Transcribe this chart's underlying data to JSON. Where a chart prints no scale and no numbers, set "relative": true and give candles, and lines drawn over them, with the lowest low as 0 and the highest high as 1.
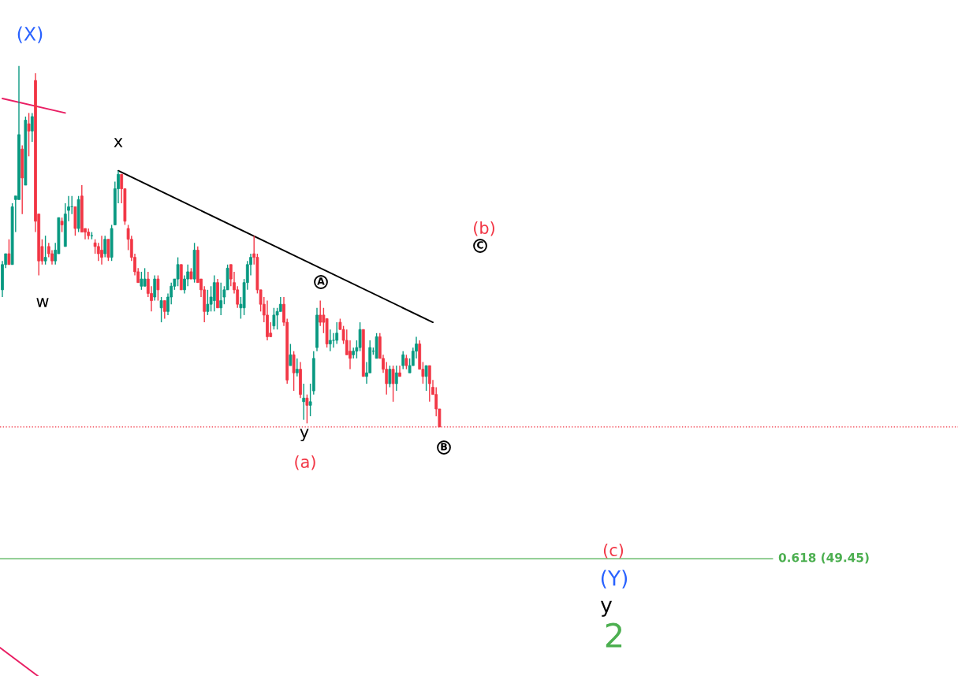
{
  "chart_data": {
    "type": "candlestick",
    "relative": true,
    "categories": [
      null,
      null,
      null,
      null,
      null,
      null,
      null,
      null,
      null,
      null,
      null,
      null,
      null,
      null,
      null,
      null,
      null,
      null,
      null,
      null,
      null,
      null,
      null,
      null,
      null,
      null,
      null,
      null,
      null,
      null,
      null,
      null,
      null,
      null,
      null,
      null,
      null,
      null,
      null,
      null,
      null,
      null,
      null,
      null,
      null,
      null,
      null,
      null,
      null,
      null,
      null,
      null,
      null,
      null,
      null,
      null,
      null,
      null,
      null,
      null,
      null,
      null,
      null,
      null,
      null,
      null,
      null,
      null,
      null,
      null,
      null,
      null,
      null,
      null,
      null,
      null,
      null,
      null,
      null,
      null,
      null,
      null,
      null,
      null,
      null,
      null,
      null,
      null,
      null,
      null,
      null,
      null,
      null,
      null,
      null,
      null,
      null,
      null,
      null,
      null,
      null,
      null,
      null,
      null,
      null,
      null,
      null,
      null,
      null,
      null,
      null,
      null,
      null,
      null,
      null,
      null,
      null,
      null,
      null,
      null,
      null,
      null,
      null,
      null,
      null,
      null,
      null,
      null,
      null,
      null,
      null,
      null,
      null
    ],
    "ohlc": [
      [
        0.38,
        0.46,
        0.36,
        0.45
      ],
      [
        0.45,
        0.48,
        0.44,
        0.48
      ],
      [
        0.48,
        0.52,
        0.45,
        0.45
      ],
      [
        0.45,
        0.62,
        0.45,
        0.61
      ],
      [
        0.63,
        0.64,
        0.54,
        0.64
      ],
      [
        0.63,
        1,
        0.63,
        0.81
      ],
      [
        0.77,
        0.78,
        0.59,
        0.69
      ],
      [
        0.67,
        0.86,
        0.67,
        0.85
      ],
      [
        0.84,
        0.87,
        0.75,
        0.82
      ],
      [
        0.82,
        0.87,
        0.79,
        0.86
      ],
      [
        0.96,
        0.98,
        0.54,
        0.57
      ],
      [
        0.59,
        0.59,
        0.42,
        0.46
      ],
      [
        0.5,
        0.52,
        0.45,
        0.46
      ],
      [
        0.46,
        0.53,
        0.45,
        0.47
      ],
      [
        0.5,
        0.51,
        0.47,
        0.48
      ],
      [
        0.48,
        0.49,
        0.45,
        0.46
      ],
      [
        0.46,
        0.51,
        0.45,
        0.49
      ],
      [
        0.48,
        0.58,
        0.48,
        0.58
      ],
      [
        0.57,
        0.58,
        0.54,
        0.56
      ],
      [
        0.5,
        0.62,
        0.5,
        0.59
      ],
      [
        0.6,
        0.64,
        0.57,
        0.61
      ],
      [
        0.61,
        0.64,
        0.59,
        0.61
      ],
      [
        0.61,
        0.61,
        0.53,
        0.55
      ],
      [
        0.55,
        0.64,
        0.54,
        0.63
      ],
      [
        0.64,
        0.67,
        0.54,
        0.54
      ],
      [
        0.55,
        0.55,
        0.52,
        0.54
      ],
      [
        0.54,
        0.55,
        0.52,
        0.53
      ],
      [
        0.53,
        0.54,
        0.52,
        0.53
      ],
      [
        0.51,
        0.52,
        0.48,
        0.5
      ],
      [
        0.5,
        0.51,
        0.46,
        0.48
      ],
      [
        0.49,
        0.53,
        0.45,
        0.47
      ],
      [
        0.48,
        0.53,
        0.47,
        0.52
      ],
      [
        0.52,
        0.52,
        0.46,
        0.47
      ],
      [
        0.47,
        0.56,
        0.46,
        0.55
      ],
      [
        0.56,
        0.68,
        0.56,
        0.66
      ],
      [
        0.66,
        0.71,
        0.62,
        0.7
      ],
      [
        0.7,
        0.7,
        0.62,
        0.66
      ],
      [
        0.66,
        0.66,
        0.56,
        0.57
      ],
      [
        0.55,
        0.56,
        0.49,
        0.52
      ],
      [
        0.52,
        0.53,
        0.46,
        0.47
      ],
      [
        0.47,
        0.48,
        0.42,
        0.43
      ],
      [
        0.43,
        0.44,
        0.4,
        0.4
      ],
      [
        0.39,
        0.43,
        0.38,
        0.41
      ],
      [
        0.39,
        0.44,
        0.39,
        0.41
      ],
      [
        0.41,
        0.43,
        0.36,
        0.37
      ],
      [
        0.37,
        0.39,
        0.32,
        0.35
      ],
      [
        0.36,
        0.42,
        0.35,
        0.41
      ],
      [
        0.41,
        0.42,
        0.35,
        0.38
      ],
      [
        0.33,
        0.36,
        0.29,
        0.35
      ],
      [
        0.35,
        0.35,
        0.3,
        0.32
      ],
      [
        0.32,
        0.37,
        0.31,
        0.36
      ],
      [
        0.36,
        0.4,
        0.34,
        0.39
      ],
      [
        0.39,
        0.41,
        0.38,
        0.41
      ],
      [
        0.41,
        0.47,
        0.39,
        0.45
      ],
      [
        0.45,
        0.45,
        0.38,
        0.38
      ],
      [
        0.38,
        0.42,
        0.37,
        0.41
      ],
      [
        0.41,
        0.45,
        0.39,
        0.43
      ],
      [
        0.43,
        0.44,
        0.41,
        0.41
      ],
      [
        0.41,
        0.51,
        0.4,
        0.49
      ],
      [
        0.49,
        0.5,
        0.4,
        0.4
      ],
      [
        0.41,
        0.41,
        0.36,
        0.38
      ],
      [
        0.38,
        0.39,
        0.29,
        0.32
      ],
      [
        0.32,
        0.38,
        0.31,
        0.34
      ],
      [
        0.34,
        0.39,
        0.32,
        0.36
      ],
      [
        0.35,
        0.42,
        0.32,
        0.4
      ],
      [
        0.4,
        0.41,
        0.33,
        0.33
      ],
      [
        0.33,
        0.4,
        0.31,
        0.35
      ],
      [
        0.36,
        0.39,
        0.34,
        0.38
      ],
      [
        0.38,
        0.45,
        0.38,
        0.44
      ],
      [
        0.45,
        0.45,
        0.39,
        0.41
      ],
      [
        0.4,
        0.43,
        0.37,
        0.38
      ],
      [
        0.38,
        0.39,
        0.33,
        0.34
      ],
      [
        0.33,
        0.36,
        0.3,
        0.34
      ],
      [
        0.33,
        0.41,
        0.31,
        0.4
      ],
      [
        0.4,
        0.46,
        0.38,
        0.45
      ],
      [
        0.45,
        0.48,
        0.42,
        0.47
      ],
      [
        0.48,
        0.53,
        0.45,
        0.47
      ],
      [
        0.47,
        0.48,
        0.37,
        0.38
      ],
      [
        0.38,
        0.38,
        0.32,
        0.34
      ],
      [
        0.34,
        0.36,
        0.29,
        0.31
      ],
      [
        0.31,
        0.35,
        0.24,
        0.25
      ],
      [
        0.26,
        0.29,
        0.25,
        0.25
      ],
      [
        0.28,
        0.33,
        0.27,
        0.31
      ],
      [
        0.31,
        0.33,
        0.27,
        0.32
      ],
      [
        0.32,
        0.36,
        0.32,
        0.34
      ],
      [
        0.34,
        0.36,
        0.28,
        0.29
      ],
      [
        0.29,
        0.3,
        0.12,
        0.13
      ],
      [
        0.17,
        0.23,
        0.17,
        0.2
      ],
      [
        0.2,
        0.21,
        0.1,
        0.15
      ],
      [
        0.15,
        0.19,
        0.14,
        0.16
      ],
      [
        0.16,
        0.18,
        0.08,
        0.09
      ],
      [
        0.07,
        0.12,
        0.02,
        0.08
      ],
      [
        0.08,
        0.09,
        0.01,
        0.06
      ],
      [
        0.06,
        0.12,
        0.03,
        0.07
      ],
      [
        0.1,
        0.21,
        0.09,
        0.19
      ],
      [
        0.22,
        0.33,
        0.21,
        0.31
      ],
      [
        0.31,
        0.35,
        0.28,
        0.29
      ],
      [
        0.31,
        0.33,
        0.26,
        0.29
      ],
      [
        0.3,
        0.3,
        0.22,
        0.23
      ],
      [
        0.23,
        0.27,
        0.21,
        0.24
      ],
      [
        0.24,
        0.26,
        0.22,
        0.24
      ],
      [
        0.24,
        0.29,
        0.23,
        0.26
      ],
      [
        0.29,
        0.3,
        0.27,
        0.27
      ],
      [
        0.27,
        0.28,
        0.23,
        0.24
      ],
      [
        0.24,
        0.27,
        0.2,
        0.2
      ],
      [
        0.21,
        0.24,
        0.16,
        0.19
      ],
      [
        0.2,
        0.22,
        0.19,
        0.21
      ],
      [
        0.21,
        0.24,
        0.19,
        0.22
      ],
      [
        0.22,
        0.29,
        0.21,
        0.27
      ],
      [
        0.27,
        0.27,
        0.14,
        0.14
      ],
      [
        0.14,
        0.18,
        0.12,
        0.15
      ],
      [
        0.15,
        0.24,
        0.15,
        0.22
      ],
      [
        0.21,
        0.22,
        0.2,
        0.21
      ],
      [
        0.19,
        0.26,
        0.19,
        0.25
      ],
      [
        0.25,
        0.26,
        0.19,
        0.19
      ],
      [
        0.19,
        0.2,
        0.15,
        0.16
      ],
      [
        0.16,
        0.18,
        0.09,
        0.12
      ],
      [
        0.12,
        0.17,
        0.11,
        0.16
      ],
      [
        0.16,
        0.17,
        0.07,
        0.12
      ],
      [
        0.12,
        0.17,
        0.1,
        0.15
      ],
      [
        0.15,
        0.17,
        0.14,
        0.14
      ],
      [
        0.17,
        0.21,
        0.16,
        0.2
      ],
      [
        0.19,
        0.2,
        0.16,
        0.17
      ],
      [
        0.15,
        0.19,
        0.15,
        0.17
      ],
      [
        0.17,
        0.22,
        0.17,
        0.21
      ],
      [
        0.21,
        0.25,
        0.19,
        0.23
      ],
      [
        0.23,
        0.24,
        0.16,
        0.16
      ],
      [
        0.16,
        0.18,
        0.12,
        0.14
      ],
      [
        0.14,
        0.17,
        0.1,
        0.17
      ],
      [
        0.17,
        0.17,
        0.07,
        0.12
      ],
      [
        0.11,
        0.13,
        0.09,
        0.09
      ],
      [
        0.09,
        0.11,
        0.03,
        0.05
      ],
      [
        0.05,
        0.05,
        0,
        0
      ]
    ],
    "series": [
      {
        "type": "line",
        "color": "#000000",
        "values": [
          null,
          null,
          null,
          null,
          null,
          null,
          null,
          null,
          null,
          null,
          null,
          null,
          null,
          null,
          null,
          null,
          null,
          null,
          null,
          null,
          null,
          null,
          null,
          null,
          null,
          null,
          null,
          null,
          null,
          null,
          null,
          null,
          null,
          null,
          null,
          0.71,
          null,
          null,
          null,
          null,
          null,
          null,
          null,
          null,
          null,
          null,
          null,
          null,
          null,
          null,
          null,
          null,
          null,
          null,
          null,
          null,
          null,
          null,
          null,
          null,
          null,
          null,
          null,
          null,
          null,
          null,
          null,
          null,
          null,
          null,
          null,
          null,
          null,
          null,
          null,
          null,
          null,
          null,
          null,
          null,
          null,
          null,
          null,
          null,
          null,
          null,
          null,
          null,
          null,
          null,
          null,
          null,
          null,
          null,
          null,
          null,
          null,
          null,
          null,
          null,
          null,
          null,
          null,
          null,
          null,
          null,
          null,
          null,
          null,
          null,
          null,
          null,
          null,
          null,
          null,
          null,
          null,
          null,
          null,
          null,
          null,
          null,
          null,
          null,
          null,
          null,
          null,
          null,
          null,
          null,
          0.29,
          null,
          null
        ]
      },
      {
        "type": "line",
        "color": "#e91e63",
        "values": [
          0.91,
          null,
          null,
          null,
          null,
          null,
          null,
          null,
          null,
          null,
          null,
          null,
          null,
          null,
          null,
          null,
          null,
          null,
          null,
          0.87,
          null,
          null,
          null,
          null,
          null,
          null,
          null,
          null,
          null,
          null,
          null,
          null,
          null,
          null,
          null,
          null,
          null,
          null,
          null,
          null,
          null,
          null,
          null,
          null,
          null,
          null,
          null,
          null,
          null,
          null,
          null,
          null,
          null,
          null,
          null,
          null,
          null,
          null,
          null,
          null,
          null,
          null,
          null,
          null,
          null,
          null,
          null,
          null,
          null,
          null,
          null,
          null,
          null,
          null,
          null,
          null,
          null,
          null,
          null,
          null,
          null,
          null,
          null,
          null,
          null,
          null,
          null,
          null,
          null,
          null,
          null,
          null,
          null,
          null,
          null,
          null,
          null,
          null,
          null,
          null,
          null,
          null,
          null,
          null,
          null,
          null,
          null,
          null,
          null,
          null,
          null,
          null,
          null,
          null,
          null,
          null,
          null,
          null,
          null,
          null,
          null,
          null,
          null,
          null,
          null,
          null,
          null,
          null,
          null,
          null,
          null,
          null,
          null
        ]
      },
      {
        "type": "line",
        "color": "#e91e63",
        "values": [
          null,
          null,
          null,
          null,
          null,
          null,
          null,
          null,
          null,
          null,
          null,
          null,
          null,
          null,
          null,
          null,
          null,
          null,
          null,
          null,
          null,
          null,
          null,
          null,
          null,
          null,
          null,
          null,
          null,
          null,
          null,
          null,
          null,
          null,
          null,
          null,
          null,
          null,
          null,
          null,
          null,
          null,
          null,
          null,
          null,
          null,
          null,
          null,
          null,
          null,
          null,
          null,
          null,
          null,
          null,
          null,
          null,
          null,
          null,
          null,
          null,
          null,
          null,
          null,
          null,
          null,
          null,
          null,
          null,
          null,
          null,
          null,
          null,
          null,
          null,
          null,
          null,
          null,
          null,
          null,
          null,
          null,
          null,
          null,
          null,
          null,
          null,
          null,
          null,
          null,
          null,
          null,
          null,
          null,
          null,
          null,
          null,
          null,
          null,
          null,
          null,
          null,
          null,
          null,
          null,
          null,
          null,
          null,
          null,
          null,
          null,
          null,
          null,
          null,
          null,
          null,
          null,
          null,
          null,
          null,
          null,
          null,
          null,
          null,
          null,
          null,
          null,
          null,
          null,
          null,
          null,
          null,
          null
        ]
      }
    ],
    "ref_lines": [
      {
        "axis": "y",
        "value": 0,
        "color": "#f23645",
        "line_style": "dotted"
      },
      {
        "axis": "y",
        "value": -0.365,
        "color": "#4caf50",
        "line_style": "solid"
      }
    ],
    "annotations": [
      "(X)",
      "x",
      "w",
      "y",
      "(a)",
      "A",
      "B",
      "C",
      "(b)",
      "(c)",
      "(Y)",
      "y",
      "2",
      "0.618 (49.45)"
    ]
  }
}
